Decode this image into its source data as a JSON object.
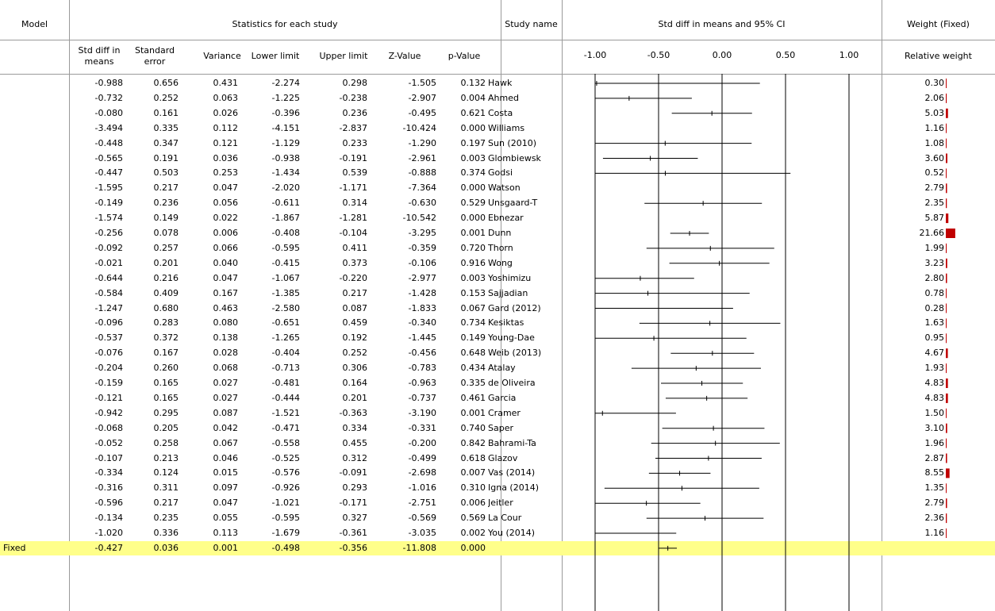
{
  "colors": {
    "weight_bar": "#c00000",
    "fixed_bg": "#ffff8a",
    "grid": "#9a9a9a"
  },
  "headers": {
    "model": "Model",
    "stats": "Statistics for each study",
    "study": "Study name",
    "ci": "Std diff in means and 95% CI",
    "weight": "Weight (Fixed)"
  },
  "subheaders": {
    "sdm": [
      "Std diff in",
      "means"
    ],
    "se": [
      "Standard",
      "error"
    ],
    "variance": "Variance",
    "lower": "Lower limit",
    "upper": "Upper limit",
    "z": "Z-Value",
    "p": "p-Value",
    "relweight": "Relative weight"
  },
  "chart_data": {
    "type": "forest",
    "xlim": [
      -1.0,
      1.0
    ],
    "ticks": [
      "-1.00",
      "-0.50",
      "0.00",
      "0.50",
      "1.00"
    ],
    "tick_values": [
      -1.0,
      -0.5,
      0.0,
      0.5,
      1.0
    ],
    "studies": [
      {
        "sdm": "-0.988",
        "se": "0.656",
        "var": "0.431",
        "lo": "-2.274",
        "hi": "0.298",
        "z": "-1.505",
        "p": "0.132",
        "name": "Hawk",
        "w": "0.30"
      },
      {
        "sdm": "-0.732",
        "se": "0.252",
        "var": "0.063",
        "lo": "-1.225",
        "hi": "-0.238",
        "z": "-2.907",
        "p": "0.004",
        "name": "Ahmed",
        "w": "2.06"
      },
      {
        "sdm": "-0.080",
        "se": "0.161",
        "var": "0.026",
        "lo": "-0.396",
        "hi": "0.236",
        "z": "-0.495",
        "p": "0.621",
        "name": "Costa",
        "w": "5.03"
      },
      {
        "sdm": "-3.494",
        "se": "0.335",
        "var": "0.112",
        "lo": "-4.151",
        "hi": "-2.837",
        "z": "-10.424",
        "p": "0.000",
        "name": "Williams",
        "w": "1.16"
      },
      {
        "sdm": "-0.448",
        "se": "0.347",
        "var": "0.121",
        "lo": "-1.129",
        "hi": "0.233",
        "z": "-1.290",
        "p": "0.197",
        "name": "Sun (2010)",
        "w": "1.08"
      },
      {
        "sdm": "-0.565",
        "se": "0.191",
        "var": "0.036",
        "lo": "-0.938",
        "hi": "-0.191",
        "z": "-2.961",
        "p": "0.003",
        "name": "Glombiewsk",
        "w": "3.60"
      },
      {
        "sdm": "-0.447",
        "se": "0.503",
        "var": "0.253",
        "lo": "-1.434",
        "hi": "0.539",
        "z": "-0.888",
        "p": "0.374",
        "name": "Godsi",
        "w": "0.52"
      },
      {
        "sdm": "-1.595",
        "se": "0.217",
        "var": "0.047",
        "lo": "-2.020",
        "hi": "-1.171",
        "z": "-7.364",
        "p": "0.000",
        "name": "Watson",
        "w": "2.79"
      },
      {
        "sdm": "-0.149",
        "se": "0.236",
        "var": "0.056",
        "lo": "-0.611",
        "hi": "0.314",
        "z": "-0.630",
        "p": "0.529",
        "name": "Unsgaard-T",
        "w": "2.35"
      },
      {
        "sdm": "-1.574",
        "se": "0.149",
        "var": "0.022",
        "lo": "-1.867",
        "hi": "-1.281",
        "z": "-10.542",
        "p": "0.000",
        "name": "Ebnezar",
        "w": "5.87"
      },
      {
        "sdm": "-0.256",
        "se": "0.078",
        "var": "0.006",
        "lo": "-0.408",
        "hi": "-0.104",
        "z": "-3.295",
        "p": "0.001",
        "name": "Dunn",
        "w": "21.66"
      },
      {
        "sdm": "-0.092",
        "se": "0.257",
        "var": "0.066",
        "lo": "-0.595",
        "hi": "0.411",
        "z": "-0.359",
        "p": "0.720",
        "name": "Thorn",
        "w": "1.99"
      },
      {
        "sdm": "-0.021",
        "se": "0.201",
        "var": "0.040",
        "lo": "-0.415",
        "hi": "0.373",
        "z": "-0.106",
        "p": "0.916",
        "name": "Wong",
        "w": "3.23"
      },
      {
        "sdm": "-0.644",
        "se": "0.216",
        "var": "0.047",
        "lo": "-1.067",
        "hi": "-0.220",
        "z": "-2.977",
        "p": "0.003",
        "name": "Yoshimizu",
        "w": "2.80"
      },
      {
        "sdm": "-0.584",
        "se": "0.409",
        "var": "0.167",
        "lo": "-1.385",
        "hi": "0.217",
        "z": "-1.428",
        "p": "0.153",
        "name": "Sajjadian",
        "w": "0.78"
      },
      {
        "sdm": "-1.247",
        "se": "0.680",
        "var": "0.463",
        "lo": "-2.580",
        "hi": "0.087",
        "z": "-1.833",
        "p": "0.067",
        "name": "Gard (2012)",
        "w": "0.28"
      },
      {
        "sdm": "-0.096",
        "se": "0.283",
        "var": "0.080",
        "lo": "-0.651",
        "hi": "0.459",
        "z": "-0.340",
        "p": "0.734",
        "name": "Kesiktas",
        "w": "1.63"
      },
      {
        "sdm": "-0.537",
        "se": "0.372",
        "var": "0.138",
        "lo": "-1.265",
        "hi": "0.192",
        "z": "-1.445",
        "p": "0.149",
        "name": "Young-Dae",
        "w": "0.95"
      },
      {
        "sdm": "-0.076",
        "se": "0.167",
        "var": "0.028",
        "lo": "-0.404",
        "hi": "0.252",
        "z": "-0.456",
        "p": "0.648",
        "name": "Weib (2013)",
        "w": "4.67"
      },
      {
        "sdm": "-0.204",
        "se": "0.260",
        "var": "0.068",
        "lo": "-0.713",
        "hi": "0.306",
        "z": "-0.783",
        "p": "0.434",
        "name": "Atalay",
        "w": "1.93"
      },
      {
        "sdm": "-0.159",
        "se": "0.165",
        "var": "0.027",
        "lo": "-0.481",
        "hi": "0.164",
        "z": "-0.963",
        "p": "0.335",
        "name": "de Oliveira",
        "w": "4.83"
      },
      {
        "sdm": "-0.121",
        "se": "0.165",
        "var": "0.027",
        "lo": "-0.444",
        "hi": "0.201",
        "z": "-0.737",
        "p": "0.461",
        "name": "Garcia",
        "w": "4.83"
      },
      {
        "sdm": "-0.942",
        "se": "0.295",
        "var": "0.087",
        "lo": "-1.521",
        "hi": "-0.363",
        "z": "-3.190",
        "p": "0.001",
        "name": "Cramer",
        "w": "1.50"
      },
      {
        "sdm": "-0.068",
        "se": "0.205",
        "var": "0.042",
        "lo": "-0.471",
        "hi": "0.334",
        "z": "-0.331",
        "p": "0.740",
        "name": "Saper",
        "w": "3.10"
      },
      {
        "sdm": "-0.052",
        "se": "0.258",
        "var": "0.067",
        "lo": "-0.558",
        "hi": "0.455",
        "z": "-0.200",
        "p": "0.842",
        "name": "Bahrami-Ta",
        "w": "1.96"
      },
      {
        "sdm": "-0.107",
        "se": "0.213",
        "var": "0.046",
        "lo": "-0.525",
        "hi": "0.312",
        "z": "-0.499",
        "p": "0.618",
        "name": "Glazov",
        "w": "2.87"
      },
      {
        "sdm": "-0.334",
        "se": "0.124",
        "var": "0.015",
        "lo": "-0.576",
        "hi": "-0.091",
        "z": "-2.698",
        "p": "0.007",
        "name": "Vas (2014)",
        "w": "8.55"
      },
      {
        "sdm": "-0.316",
        "se": "0.311",
        "var": "0.097",
        "lo": "-0.926",
        "hi": "0.293",
        "z": "-1.016",
        "p": "0.310",
        "name": "Igna (2014)",
        "w": "1.35"
      },
      {
        "sdm": "-0.596",
        "se": "0.217",
        "var": "0.047",
        "lo": "-1.021",
        "hi": "-0.171",
        "z": "-2.751",
        "p": "0.006",
        "name": "Jeitler",
        "w": "2.79"
      },
      {
        "sdm": "-0.134",
        "se": "0.235",
        "var": "0.055",
        "lo": "-0.595",
        "hi": "0.327",
        "z": "-0.569",
        "p": "0.569",
        "name": "La Cour",
        "w": "2.36"
      },
      {
        "sdm": "-1.020",
        "se": "0.336",
        "var": "0.113",
        "lo": "-1.679",
        "hi": "-0.361",
        "z": "-3.035",
        "p": "0.002",
        "name": "You (2014)",
        "w": "1.16"
      }
    ],
    "fixed": {
      "model": "Fixed",
      "sdm": "-0.427",
      "se": "0.036",
      "var": "0.001",
      "lo": "-0.498",
      "hi": "-0.356",
      "z": "-11.808",
      "p": "0.000"
    }
  }
}
